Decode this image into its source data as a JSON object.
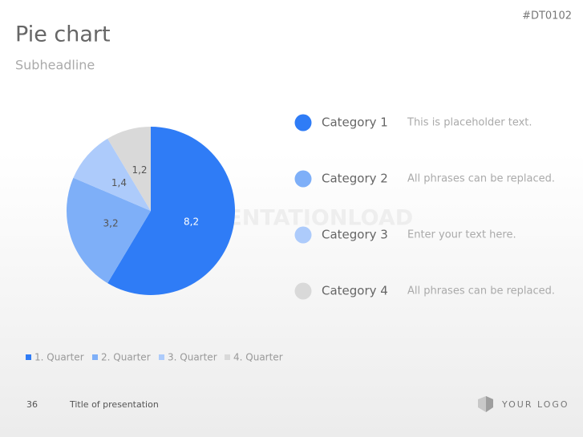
{
  "slide": {
    "code": "#DT0102",
    "title": "Pie chart",
    "subtitle": "Subheadline",
    "watermark": "PRESENTATIONLOAD",
    "items": [
      {
        "label": "Category 1",
        "text": "This is placeholder text."
      },
      {
        "label": "Category 2",
        "text": "All phrases can be replaced."
      },
      {
        "label": "Category 3",
        "text": "Enter your text here."
      },
      {
        "label": "Category 4",
        "text": "All phrases can be replaced."
      }
    ],
    "footer": {
      "page_number": "36",
      "presentation_title": "Title of presentation",
      "logo": "YOUR LOGO"
    }
  },
  "chart_data": {
    "type": "pie",
    "categories": [
      "1. Quarter",
      "2. Quarter",
      "3. Quarter",
      "4. Quarter"
    ],
    "values": [
      8.2,
      3.2,
      1.4,
      1.2
    ],
    "value_labels": [
      "8,2",
      "3,2",
      "1,4",
      "1,2"
    ],
    "colors": [
      "#2f7cf6",
      "#7eaff8",
      "#adcbfb",
      "#d9d9d9"
    ]
  }
}
